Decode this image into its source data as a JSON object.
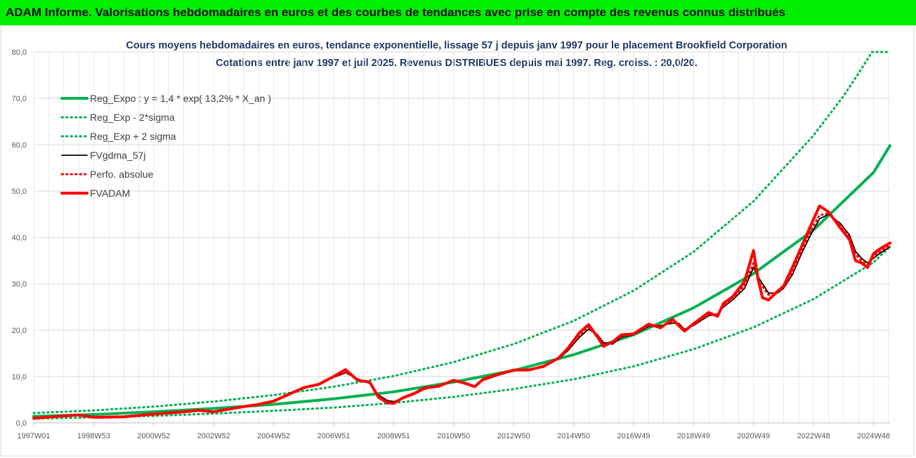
{
  "header": {
    "title": "ADAM Informe. Valorisations hebdomadaires en euros et des courbes de tendances avec prise en compte des revenus connus distribués"
  },
  "colors": {
    "banner": "#00ee00",
    "reg_expo": "#00b050",
    "fvgdma": "#000000",
    "fvadam": "#ff0000",
    "title_text": "#1f3864"
  },
  "chart_data": {
    "type": "line",
    "title": "Cours moyens hebdomadaires en euros, tendance exponentielle, lissage 57 j depuis janv 1997 pour le placement Brookfield Corporation",
    "subtitle": "Cotations entre janv 1997 et juil 2025. Revenus DISTRIBUES depuis mai 1997. Reg. croiss. : 20,0/20.",
    "xlabel": "",
    "ylabel": "",
    "ylim": [
      0,
      80
    ],
    "yticks": [
      "0,0",
      "10,0",
      "20,0",
      "30,0",
      "40,0",
      "50,0",
      "60,0",
      "70,0",
      "80,0"
    ],
    "xlim": [
      1997.0,
      2025.55
    ],
    "xtick_labels": [
      "1997W01",
      "1998W53",
      "2000W52",
      "2002W52",
      "2004W52",
      "2006W51",
      "2008W51",
      "2010W50",
      "2012W50",
      "2014W50",
      "2016W49",
      "2018W49",
      "2020W49",
      "2022W48",
      "2024W48"
    ],
    "xtick_positions": [
      1997.0,
      1999.0,
      2001.0,
      2003.0,
      2005.0,
      2007.0,
      2009.0,
      2011.0,
      2013.0,
      2015.0,
      2017.0,
      2019.0,
      2021.0,
      2023.0,
      2025.0
    ],
    "grid": true,
    "legend_position": "top-left",
    "series": [
      {
        "name": "Reg_Expo : y = 1,4 * exp( 13,2% *  X_an )",
        "style": "solid-thick",
        "color": "#00b050",
        "points": [
          [
            1997.0,
            1.4
          ],
          [
            1999.0,
            1.8
          ],
          [
            2001.0,
            2.4
          ],
          [
            2003.0,
            3.1
          ],
          [
            2005.0,
            4.0
          ],
          [
            2007.0,
            5.2
          ],
          [
            2009.0,
            6.7
          ],
          [
            2011.0,
            8.8
          ],
          [
            2013.0,
            11.3
          ],
          [
            2015.0,
            14.7
          ],
          [
            2017.0,
            19.0
          ],
          [
            2019.0,
            24.8
          ],
          [
            2021.0,
            32.2
          ],
          [
            2023.0,
            41.6
          ],
          [
            2025.0,
            54.0
          ],
          [
            2025.55,
            59.8
          ]
        ]
      },
      {
        "name": "Reg_Exp - 2*sigma",
        "style": "dotted",
        "color": "#00b050",
        "points": [
          [
            1997.0,
            0.9
          ],
          [
            1999.0,
            1.2
          ],
          [
            2001.0,
            1.5
          ],
          [
            2003.0,
            2.0
          ],
          [
            2005.0,
            2.6
          ],
          [
            2007.0,
            3.3
          ],
          [
            2009.0,
            4.3
          ],
          [
            2011.0,
            5.6
          ],
          [
            2013.0,
            7.3
          ],
          [
            2015.0,
            9.4
          ],
          [
            2017.0,
            12.2
          ],
          [
            2019.0,
            15.9
          ],
          [
            2021.0,
            20.6
          ],
          [
            2023.0,
            26.7
          ],
          [
            2025.0,
            34.6
          ],
          [
            2025.55,
            38.0
          ]
        ]
      },
      {
        "name": "Reg_Exp + 2 sigma",
        "style": "dotted",
        "color": "#00b050",
        "points": [
          [
            1997.0,
            2.1
          ],
          [
            1999.0,
            2.7
          ],
          [
            2001.0,
            3.5
          ],
          [
            2003.0,
            4.6
          ],
          [
            2005.0,
            6.0
          ],
          [
            2007.0,
            7.8
          ],
          [
            2009.0,
            10.1
          ],
          [
            2011.0,
            13.1
          ],
          [
            2013.0,
            17.0
          ],
          [
            2015.0,
            22.0
          ],
          [
            2017.0,
            28.5
          ],
          [
            2019.0,
            36.9
          ],
          [
            2021.0,
            47.8
          ],
          [
            2023.0,
            62.0
          ],
          [
            2024.0,
            70.5
          ],
          [
            2024.55,
            75.9
          ],
          [
            2024.95,
            80.0
          ],
          [
            2025.55,
            80.0
          ]
        ]
      },
      {
        "name": "FVgdma_57j",
        "style": "solid",
        "color": "#000000",
        "points": [
          [
            1997.0,
            1.1
          ],
          [
            1998.0,
            1.5
          ],
          [
            1998.5,
            1.6
          ],
          [
            1999.0,
            1.3
          ],
          [
            2000.0,
            1.4
          ],
          [
            2001.0,
            1.9
          ],
          [
            2002.0,
            2.3
          ],
          [
            2002.5,
            2.6
          ],
          [
            2003.0,
            2.5
          ],
          [
            2004.0,
            3.4
          ],
          [
            2004.5,
            3.9
          ],
          [
            2005.0,
            4.6
          ],
          [
            2006.0,
            7.4
          ],
          [
            2006.5,
            8.5
          ],
          [
            2007.0,
            9.8
          ],
          [
            2007.4,
            10.8
          ],
          [
            2007.8,
            9.5
          ],
          [
            2008.2,
            8.5
          ],
          [
            2008.5,
            6.0
          ],
          [
            2008.8,
            4.8
          ],
          [
            2009.0,
            4.6
          ],
          [
            2009.3,
            5.2
          ],
          [
            2009.7,
            6.2
          ],
          [
            2010.0,
            7.2
          ],
          [
            2010.5,
            8.1
          ],
          [
            2011.0,
            9.0
          ],
          [
            2011.4,
            8.7
          ],
          [
            2011.7,
            8.0
          ],
          [
            2012.0,
            9.2
          ],
          [
            2012.5,
            10.3
          ],
          [
            2013.0,
            11.2
          ],
          [
            2013.5,
            11.6
          ],
          [
            2014.0,
            12.0
          ],
          [
            2014.5,
            13.8
          ],
          [
            2014.8,
            15.5
          ],
          [
            2015.2,
            18.5
          ],
          [
            2015.5,
            20.2
          ],
          [
            2015.8,
            19.0
          ],
          [
            2016.0,
            17.3
          ],
          [
            2016.3,
            17.0
          ],
          [
            2016.6,
            18.5
          ],
          [
            2017.0,
            19.0
          ],
          [
            2017.5,
            20.8
          ],
          [
            2017.9,
            21.0
          ],
          [
            2018.3,
            21.5
          ],
          [
            2018.5,
            21.5
          ],
          [
            2018.7,
            20.2
          ],
          [
            2019.0,
            21.0
          ],
          [
            2019.5,
            23.1
          ],
          [
            2019.8,
            23.5
          ],
          [
            2020.0,
            25.0
          ],
          [
            2020.3,
            26.5
          ],
          [
            2020.7,
            29.0
          ],
          [
            2021.0,
            33.5
          ],
          [
            2021.2,
            31.0
          ],
          [
            2021.5,
            28.0
          ],
          [
            2021.8,
            28.0
          ],
          [
            2022.0,
            29.0
          ],
          [
            2022.3,
            32.0
          ],
          [
            2022.6,
            36.5
          ],
          [
            2022.9,
            40.5
          ],
          [
            2023.2,
            44.0
          ],
          [
            2023.5,
            45.0
          ],
          [
            2023.9,
            43.0
          ],
          [
            2024.2,
            40.5
          ],
          [
            2024.4,
            37.0
          ],
          [
            2024.6,
            35.5
          ],
          [
            2024.8,
            34.5
          ],
          [
            2025.0,
            35.5
          ],
          [
            2025.2,
            36.5
          ],
          [
            2025.55,
            38.0
          ]
        ]
      },
      {
        "name": "Perfo. absolue",
        "style": "dotted",
        "color": "#ff0000",
        "points": [
          [
            1997.0,
            1.0
          ],
          [
            1998.0,
            1.5
          ],
          [
            1998.5,
            1.7
          ],
          [
            1999.0,
            1.3
          ],
          [
            2000.0,
            1.3
          ],
          [
            2001.0,
            1.9
          ],
          [
            2002.0,
            2.3
          ],
          [
            2002.5,
            2.7
          ],
          [
            2003.0,
            2.4
          ],
          [
            2004.0,
            3.5
          ],
          [
            2004.5,
            3.9
          ],
          [
            2005.0,
            4.6
          ],
          [
            2006.0,
            7.5
          ],
          [
            2006.5,
            8.4
          ],
          [
            2007.0,
            9.9
          ],
          [
            2007.4,
            11.0
          ],
          [
            2007.8,
            9.3
          ],
          [
            2008.2,
            8.7
          ],
          [
            2008.5,
            5.8
          ],
          [
            2008.8,
            4.5
          ],
          [
            2009.0,
            4.4
          ],
          [
            2009.3,
            5.3
          ],
          [
            2009.7,
            6.3
          ],
          [
            2010.0,
            7.3
          ],
          [
            2010.5,
            8.0
          ],
          [
            2011.0,
            9.1
          ],
          [
            2011.4,
            8.6
          ],
          [
            2011.7,
            7.9
          ],
          [
            2012.0,
            9.3
          ],
          [
            2012.5,
            10.4
          ],
          [
            2013.0,
            11.3
          ],
          [
            2013.5,
            11.5
          ],
          [
            2014.0,
            12.1
          ],
          [
            2014.5,
            13.9
          ],
          [
            2014.8,
            15.8
          ],
          [
            2015.2,
            18.9
          ],
          [
            2015.5,
            20.6
          ],
          [
            2015.8,
            18.8
          ],
          [
            2016.0,
            16.9
          ],
          [
            2016.3,
            17.3
          ],
          [
            2016.6,
            18.7
          ],
          [
            2017.0,
            19.1
          ],
          [
            2017.5,
            21.0
          ],
          [
            2017.9,
            20.7
          ],
          [
            2018.3,
            21.9
          ],
          [
            2018.5,
            21.2
          ],
          [
            2018.7,
            20.0
          ],
          [
            2019.0,
            21.2
          ],
          [
            2019.5,
            23.4
          ],
          [
            2019.8,
            23.2
          ],
          [
            2020.0,
            25.3
          ],
          [
            2020.3,
            26.8
          ],
          [
            2020.7,
            29.6
          ],
          [
            2021.0,
            34.5
          ],
          [
            2021.2,
            30.2
          ],
          [
            2021.5,
            27.6
          ],
          [
            2021.8,
            28.3
          ],
          [
            2022.0,
            29.2
          ],
          [
            2022.3,
            32.6
          ],
          [
            2022.6,
            37.2
          ],
          [
            2022.9,
            41.4
          ],
          [
            2023.2,
            44.8
          ],
          [
            2023.5,
            45.2
          ],
          [
            2023.9,
            42.6
          ],
          [
            2024.2,
            40.0
          ],
          [
            2024.4,
            36.4
          ],
          [
            2024.6,
            35.0
          ],
          [
            2024.8,
            34.0
          ],
          [
            2025.0,
            35.9
          ],
          [
            2025.2,
            36.9
          ],
          [
            2025.55,
            38.3
          ]
        ]
      },
      {
        "name": "FVADAM",
        "style": "solid-thick",
        "color": "#ff0000",
        "points": [
          [
            1997.0,
            1.0
          ],
          [
            1998.0,
            1.5
          ],
          [
            1998.5,
            1.7
          ],
          [
            1999.0,
            1.2
          ],
          [
            2000.0,
            1.3
          ],
          [
            2001.0,
            1.9
          ],
          [
            2002.0,
            2.4
          ],
          [
            2002.5,
            2.7
          ],
          [
            2003.0,
            2.4
          ],
          [
            2004.0,
            3.5
          ],
          [
            2004.5,
            4.0
          ],
          [
            2005.0,
            4.7
          ],
          [
            2006.0,
            7.6
          ],
          [
            2006.5,
            8.3
          ],
          [
            2007.0,
            10.0
          ],
          [
            2007.4,
            11.5
          ],
          [
            2007.8,
            9.2
          ],
          [
            2008.2,
            8.8
          ],
          [
            2008.5,
            5.5
          ],
          [
            2008.8,
            4.3
          ],
          [
            2009.0,
            4.2
          ],
          [
            2009.3,
            5.4
          ],
          [
            2009.7,
            6.4
          ],
          [
            2010.0,
            7.5
          ],
          [
            2010.5,
            7.9
          ],
          [
            2011.0,
            9.2
          ],
          [
            2011.4,
            8.5
          ],
          [
            2011.7,
            7.8
          ],
          [
            2012.0,
            9.5
          ],
          [
            2012.5,
            10.5
          ],
          [
            2013.0,
            11.4
          ],
          [
            2013.5,
            11.4
          ],
          [
            2014.0,
            12.2
          ],
          [
            2014.5,
            14.0
          ],
          [
            2014.8,
            16.0
          ],
          [
            2015.2,
            19.5
          ],
          [
            2015.5,
            21.2
          ],
          [
            2015.8,
            18.5
          ],
          [
            2016.0,
            16.5
          ],
          [
            2016.3,
            17.5
          ],
          [
            2016.6,
            19.0
          ],
          [
            2017.0,
            19.2
          ],
          [
            2017.5,
            21.3
          ],
          [
            2017.9,
            20.5
          ],
          [
            2018.3,
            22.4
          ],
          [
            2018.5,
            21.0
          ],
          [
            2018.7,
            19.8
          ],
          [
            2019.0,
            21.4
          ],
          [
            2019.5,
            23.8
          ],
          [
            2019.8,
            23.0
          ],
          [
            2020.0,
            25.8
          ],
          [
            2020.3,
            27.2
          ],
          [
            2020.7,
            30.5
          ],
          [
            2021.0,
            37.2
          ],
          [
            2021.15,
            31.0
          ],
          [
            2021.3,
            27.0
          ],
          [
            2021.5,
            26.5
          ],
          [
            2021.8,
            28.4
          ],
          [
            2022.0,
            29.5
          ],
          [
            2022.3,
            33.6
          ],
          [
            2022.6,
            38.0
          ],
          [
            2022.9,
            42.5
          ],
          [
            2023.2,
            46.8
          ],
          [
            2023.5,
            45.5
          ],
          [
            2023.9,
            42.0
          ],
          [
            2024.2,
            39.5
          ],
          [
            2024.4,
            35.0
          ],
          [
            2024.6,
            34.5
          ],
          [
            2024.8,
            33.5
          ],
          [
            2025.0,
            36.5
          ],
          [
            2025.2,
            37.5
          ],
          [
            2025.55,
            38.8
          ]
        ]
      }
    ]
  }
}
